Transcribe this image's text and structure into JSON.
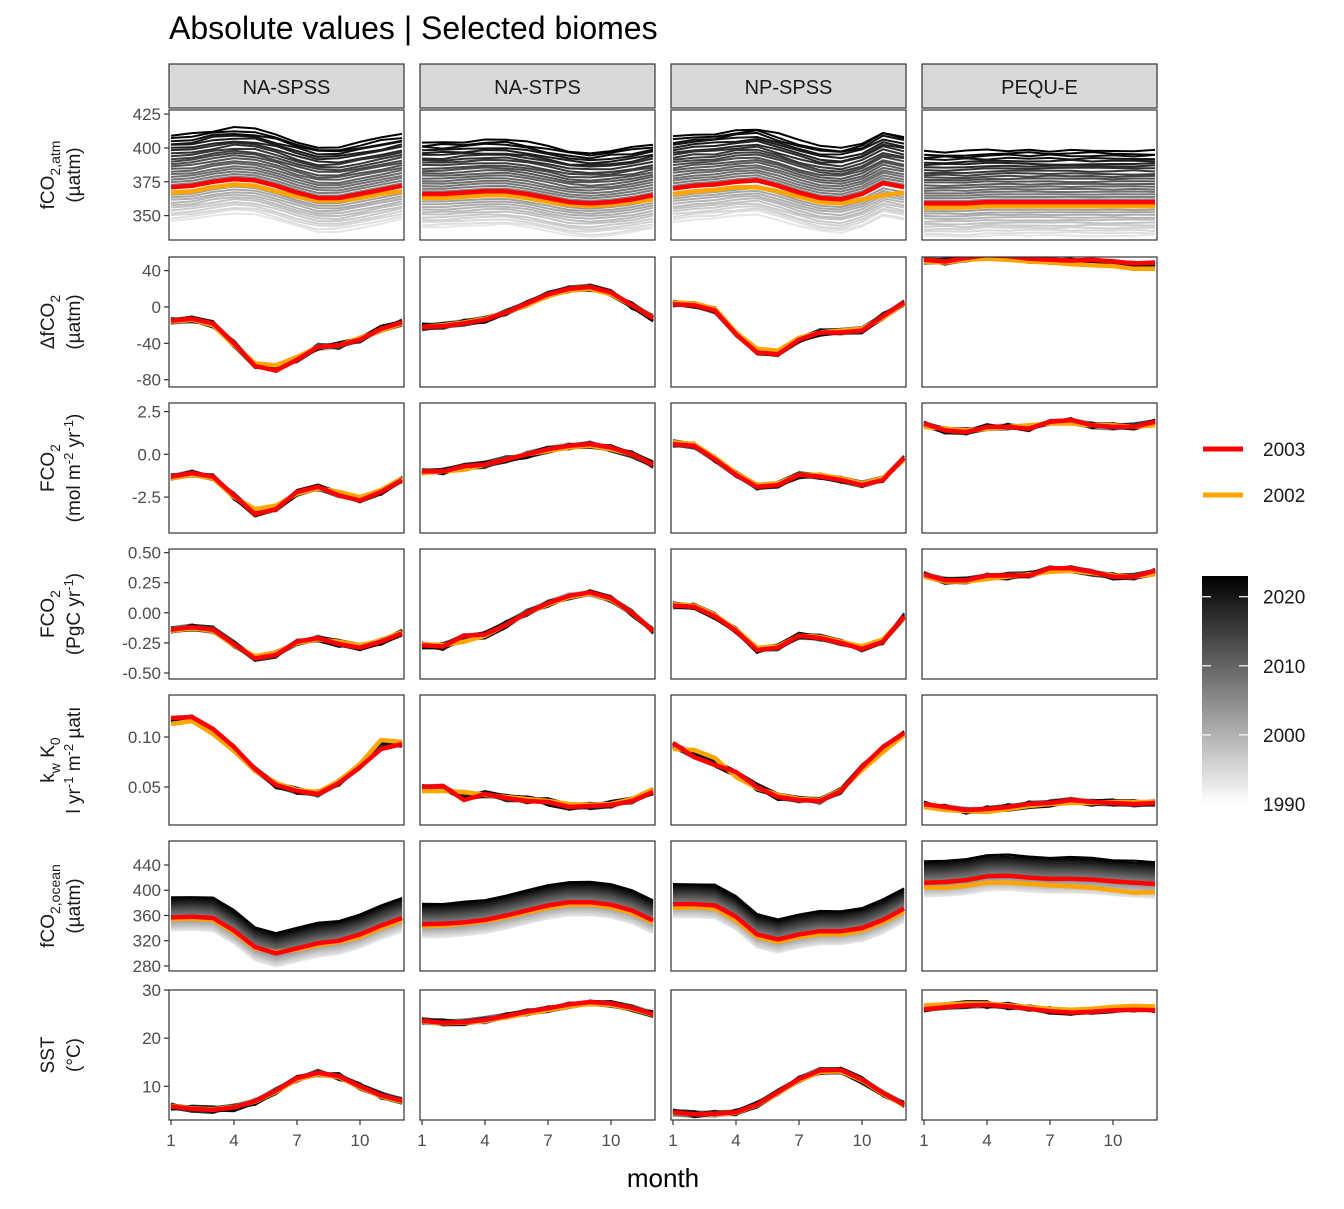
{
  "chart_data": {
    "type": "line",
    "title": "Absolute values | Selected biomes",
    "xlabel": "month",
    "x_ticks": [
      "1",
      "4",
      "7",
      "10"
    ],
    "xlim": [
      1,
      12
    ],
    "biomes": [
      "NA-SPSS",
      "NA-STPS",
      "NP-SPSS",
      "PEQU-E"
    ],
    "rows": [
      {
        "key": "fco2atm",
        "label_main": "fCO",
        "label_sub": "2,atm",
        "label_unit": "(µatm)",
        "ylim": [
          332,
          428
        ],
        "y_ticks": [
          350,
          375,
          400,
          425
        ],
        "y_tick_labels": [
          "350",
          "375",
          "400",
          "425"
        ]
      },
      {
        "key": "dfco2",
        "label_main": "ΔfCO",
        "label_sub": "2",
        "label_unit": "(µatm)",
        "ylim": [
          -88,
          55
        ],
        "y_ticks": [
          -80,
          -40,
          0,
          40
        ],
        "y_tick_labels": [
          "-80",
          "-40",
          "0",
          "40"
        ]
      },
      {
        "key": "fco2_mol",
        "label_main": "FCO",
        "label_sub": "2",
        "label_unit_pre": "(mol m",
        "label_unit_sup1": "-2",
        "label_unit_mid": " yr",
        "label_unit_sup2": "-1",
        "label_unit_post": ")",
        "ylim": [
          -4.6,
          3.0
        ],
        "y_ticks": [
          -2.5,
          0.0,
          2.5
        ],
        "y_tick_labels": [
          "-2.5",
          "0.0",
          "2.5"
        ]
      },
      {
        "key": "fco2_pgc",
        "label_main": "FCO",
        "label_sub": "2",
        "label_unit_pre": "(PgC yr",
        "label_unit_sup1": "-1",
        "label_unit_post": ")",
        "ylim": [
          -0.55,
          0.53
        ],
        "y_ticks": [
          -0.5,
          -0.25,
          0.0,
          0.25,
          0.5
        ],
        "y_tick_labels": [
          "-0.50",
          "-0.25",
          "0.00",
          "0.25",
          "0.50"
        ]
      },
      {
        "key": "kwk0",
        "label_main": "k",
        "label_sub": "w",
        "label_main2": " K",
        "label_sub2": "0",
        "label_unit_pre": "l yr",
        "label_unit_sup1": "-1",
        "label_unit_mid": " m",
        "label_unit_sup2": "-2",
        "label_unit_post": " µatı",
        "ylim": [
          0.012,
          0.142
        ],
        "y_ticks": [
          0.05,
          0.1
        ],
        "y_tick_labels": [
          "0.05",
          "0.10"
        ]
      },
      {
        "key": "fco2ocean",
        "label_main": "fCO",
        "label_sub": "2,ocean",
        "label_unit": "(µatm)",
        "ylim": [
          272,
          478
        ],
        "y_ticks": [
          280,
          320,
          360,
          400,
          440
        ],
        "y_tick_labels": [
          "280",
          "320",
          "360",
          "400",
          "440"
        ]
      },
      {
        "key": "sst",
        "label_main": "SST",
        "label_unit": "(°C)",
        "ylim": [
          3,
          30
        ],
        "y_ticks": [
          10,
          20,
          30
        ],
        "y_tick_labels": [
          "10",
          "20",
          "30"
        ]
      }
    ],
    "highlight_series": [
      {
        "name": "2003",
        "color": "#ff0000",
        "values": {
          "fco2atm": [
            [
              371,
              372,
              375,
              377,
              376,
              372,
              367,
              363,
              363,
              366,
              369,
              372
            ],
            [
              366,
              366,
              367,
              368,
              368,
              366,
              363,
              360,
              359,
              360,
              362,
              365
            ],
            [
              370,
              372,
              373,
              375,
              376,
              372,
              367,
              363,
              362,
              366,
              374,
              371
            ],
            [
              359,
              359,
              359,
              360,
              360,
              360,
              360,
              360,
              360,
              360,
              360,
              360
            ]
          ],
          "dfco2": [
            [
              -15,
              -13,
              -18,
              -40,
              -65,
              -70,
              -58,
              -44,
              -42,
              -36,
              -24,
              -17
            ],
            [
              -22,
              -21,
              -18,
              -14,
              -6,
              4,
              14,
              20,
              22,
              16,
              2,
              -12
            ],
            [
              3,
              2,
              -4,
              -30,
              -50,
              -52,
              -36,
              -28,
              -28,
              -26,
              -10,
              5
            ],
            [
              52,
              50,
              54,
              57,
              56,
              53,
              52,
              51,
              52,
              50,
              48,
              49
            ]
          ],
          "fco2_mol": [
            [
              -1.3,
              -1.1,
              -1.3,
              -2.4,
              -3.5,
              -3.2,
              -2.2,
              -1.9,
              -2.4,
              -2.7,
              -2.2,
              -1.5
            ],
            [
              -1.0,
              -1.0,
              -0.7,
              -0.6,
              -0.3,
              0.0,
              0.3,
              0.5,
              0.6,
              0.4,
              0.0,
              -0.6
            ],
            [
              0.6,
              0.5,
              -0.3,
              -1.2,
              -1.9,
              -1.8,
              -1.2,
              -1.3,
              -1.5,
              -1.8,
              -1.5,
              -0.2
            ],
            [
              1.8,
              1.4,
              1.3,
              1.6,
              1.6,
              1.5,
              1.9,
              2.0,
              1.7,
              1.6,
              1.6,
              1.9
            ]
          ],
          "fco2_pgc": [
            [
              -0.14,
              -0.12,
              -0.14,
              -0.26,
              -0.38,
              -0.35,
              -0.24,
              -0.21,
              -0.26,
              -0.29,
              -0.24,
              -0.17
            ],
            [
              -0.27,
              -0.28,
              -0.19,
              -0.18,
              -0.1,
              0.0,
              0.08,
              0.14,
              0.17,
              0.12,
              0.0,
              -0.15
            ],
            [
              0.06,
              0.05,
              -0.03,
              -0.15,
              -0.31,
              -0.29,
              -0.19,
              -0.21,
              -0.25,
              -0.3,
              -0.24,
              -0.03
            ],
            [
              0.32,
              0.27,
              0.27,
              0.31,
              0.31,
              0.31,
              0.37,
              0.37,
              0.34,
              0.3,
              0.3,
              0.35
            ]
          ],
          "kwk0": [
            [
              0.119,
              0.12,
              0.108,
              0.09,
              0.068,
              0.052,
              0.046,
              0.043,
              0.054,
              0.07,
              0.088,
              0.093
            ],
            [
              0.05,
              0.051,
              0.037,
              0.043,
              0.039,
              0.036,
              0.035,
              0.03,
              0.031,
              0.032,
              0.036,
              0.045
            ],
            [
              0.094,
              0.08,
              0.072,
              0.065,
              0.05,
              0.04,
              0.037,
              0.036,
              0.046,
              0.07,
              0.09,
              0.104
            ],
            [
              0.033,
              0.03,
              0.027,
              0.028,
              0.03,
              0.033,
              0.034,
              0.037,
              0.035,
              0.034,
              0.033,
              0.034
            ]
          ],
          "fco2ocean": [
            [
              357,
              358,
              356,
              336,
              310,
              300,
              308,
              316,
              320,
              330,
              344,
              356
            ],
            [
              346,
              347,
              349,
              353,
              360,
              368,
              376,
              381,
              381,
              377,
              368,
              352
            ],
            [
              378,
              378,
              376,
              358,
              330,
              322,
              330,
              335,
              335,
              340,
              353,
              371
            ],
            [
              412,
              413,
              416,
              422,
              423,
              420,
              418,
              418,
              417,
              414,
              412,
              410
            ]
          ],
          "sst": [
            [
              5.8,
              5.3,
              5.1,
              5.6,
              6.9,
              9.1,
              11.7,
              12.8,
              12.1,
              10.0,
              8.1,
              7.0
            ],
            [
              23.6,
              23.2,
              23.3,
              23.8,
              24.6,
              25.5,
              26.2,
              27.0,
              27.5,
              27.2,
              26.3,
              25.0
            ],
            [
              4.6,
              4.2,
              4.3,
              4.6,
              6.2,
              8.8,
              11.5,
              13.3,
              13.4,
              11.4,
              8.6,
              6.2
            ],
            [
              26.0,
              26.4,
              26.8,
              26.9,
              26.6,
              26.1,
              25.6,
              25.3,
              25.5,
              25.8,
              25.9,
              25.8
            ]
          ]
        }
      },
      {
        "name": "2002",
        "color": "#ffa500",
        "values": {
          "fco2atm": [
            [
              367,
              368,
              371,
              373,
              372,
              368,
              364,
              361,
              361,
              363,
              366,
              368
            ],
            [
              363,
              363,
              364,
              365,
              365,
              363,
              360,
              358,
              357,
              358,
              360,
              362
            ],
            [
              366,
              368,
              369,
              371,
              371,
              368,
              364,
              360,
              359,
              362,
              365,
              367
            ],
            [
              356,
              356,
              356,
              357,
              357,
              357,
              357,
              357,
              357,
              357,
              357,
              357
            ]
          ],
          "dfco2": [
            [
              -16,
              -14,
              -20,
              -42,
              -62,
              -64,
              -55,
              -44,
              -42,
              -34,
              -26,
              -18
            ],
            [
              -22,
              -20,
              -17,
              -13,
              -6,
              2,
              12,
              18,
              20,
              14,
              2,
              -12
            ],
            [
              5,
              4,
              -2,
              -28,
              -46,
              -48,
              -34,
              -28,
              -26,
              -24,
              -12,
              4
            ],
            [
              50,
              49,
              52,
              53,
              52,
              50,
              49,
              47,
              46,
              45,
              42,
              42
            ]
          ],
          "fco2_mol": [
            [
              -1.4,
              -1.2,
              -1.4,
              -2.5,
              -3.2,
              -3.0,
              -2.3,
              -2.0,
              -2.2,
              -2.5,
              -2.1,
              -1.4
            ],
            [
              -1.1,
              -1.0,
              -0.9,
              -0.6,
              -0.3,
              0.0,
              0.2,
              0.4,
              0.5,
              0.3,
              0.0,
              -0.6
            ],
            [
              0.7,
              0.6,
              -0.2,
              -1.1,
              -1.8,
              -1.7,
              -1.2,
              -1.2,
              -1.4,
              -1.7,
              -1.4,
              -0.3
            ],
            [
              1.6,
              1.5,
              1.4,
              1.5,
              1.6,
              1.7,
              1.8,
              1.8,
              1.7,
              1.7,
              1.6,
              1.7
            ]
          ],
          "fco2_pgc": [
            [
              -0.15,
              -0.13,
              -0.15,
              -0.27,
              -0.36,
              -0.33,
              -0.25,
              -0.22,
              -0.24,
              -0.27,
              -0.23,
              -0.16
            ],
            [
              -0.26,
              -0.27,
              -0.24,
              -0.19,
              -0.1,
              0.0,
              0.07,
              0.13,
              0.16,
              0.11,
              0.0,
              -0.15
            ],
            [
              0.07,
              0.06,
              -0.02,
              -0.14,
              -0.29,
              -0.28,
              -0.19,
              -0.2,
              -0.24,
              -0.28,
              -0.22,
              -0.04
            ],
            [
              0.3,
              0.26,
              0.26,
              0.28,
              0.3,
              0.32,
              0.34,
              0.35,
              0.33,
              0.31,
              0.3,
              0.32
            ]
          ],
          "kwk0": [
            [
              0.113,
              0.116,
              0.103,
              0.086,
              0.066,
              0.054,
              0.047,
              0.045,
              0.056,
              0.073,
              0.097,
              0.095
            ],
            [
              0.046,
              0.046,
              0.045,
              0.042,
              0.04,
              0.038,
              0.036,
              0.033,
              0.032,
              0.033,
              0.038,
              0.048
            ],
            [
              0.088,
              0.087,
              0.079,
              0.06,
              0.049,
              0.042,
              0.038,
              0.037,
              0.047,
              0.067,
              0.085,
              0.102
            ],
            [
              0.03,
              0.027,
              0.026,
              0.025,
              0.028,
              0.031,
              0.033,
              0.034,
              0.034,
              0.035,
              0.035,
              0.035
            ]
          ],
          "fco2ocean": [
            [
              354,
              355,
              353,
              333,
              308,
              302,
              306,
              313,
              318,
              326,
              340,
              352
            ],
            [
              343,
              344,
              347,
              351,
              357,
              365,
              372,
              377,
              377,
              373,
              364,
              349
            ],
            [
              372,
              373,
              371,
              352,
              326,
              318,
              326,
              330,
              330,
              336,
              349,
              366
            ],
            [
              404,
              404,
              407,
              412,
              412,
              410,
              408,
              406,
              404,
              400,
              396,
              397
            ]
          ],
          "sst": [
            [
              5.9,
              5.4,
              5.2,
              5.7,
              6.8,
              8.9,
              11.4,
              12.5,
              11.9,
              9.8,
              7.9,
              6.8
            ],
            [
              23.5,
              23.1,
              23.2,
              23.6,
              24.3,
              25.1,
              25.8,
              26.6,
              27.1,
              26.9,
              26.1,
              24.9
            ],
            [
              4.5,
              4.2,
              4.2,
              4.5,
              6.1,
              8.6,
              11.2,
              13.0,
              13.1,
              11.2,
              8.4,
              6.1
            ],
            [
              26.8,
              27.0,
              27.2,
              27.2,
              26.8,
              26.4,
              26.1,
              25.9,
              26.1,
              26.5,
              26.7,
              26.6
            ]
          ]
        }
      }
    ],
    "legend": {
      "placement": "right",
      "highlight_entries": [
        {
          "label": "2003",
          "color": "#ff0000"
        },
        {
          "label": "2002",
          "color": "#ffa500"
        }
      ],
      "gradient_ticks": [
        "1990",
        "2000",
        "2010",
        "2020"
      ],
      "gradient_range": [
        1990,
        2023
      ],
      "gradient_colors": [
        "#ffffff",
        "#000000"
      ]
    },
    "grid": false
  }
}
